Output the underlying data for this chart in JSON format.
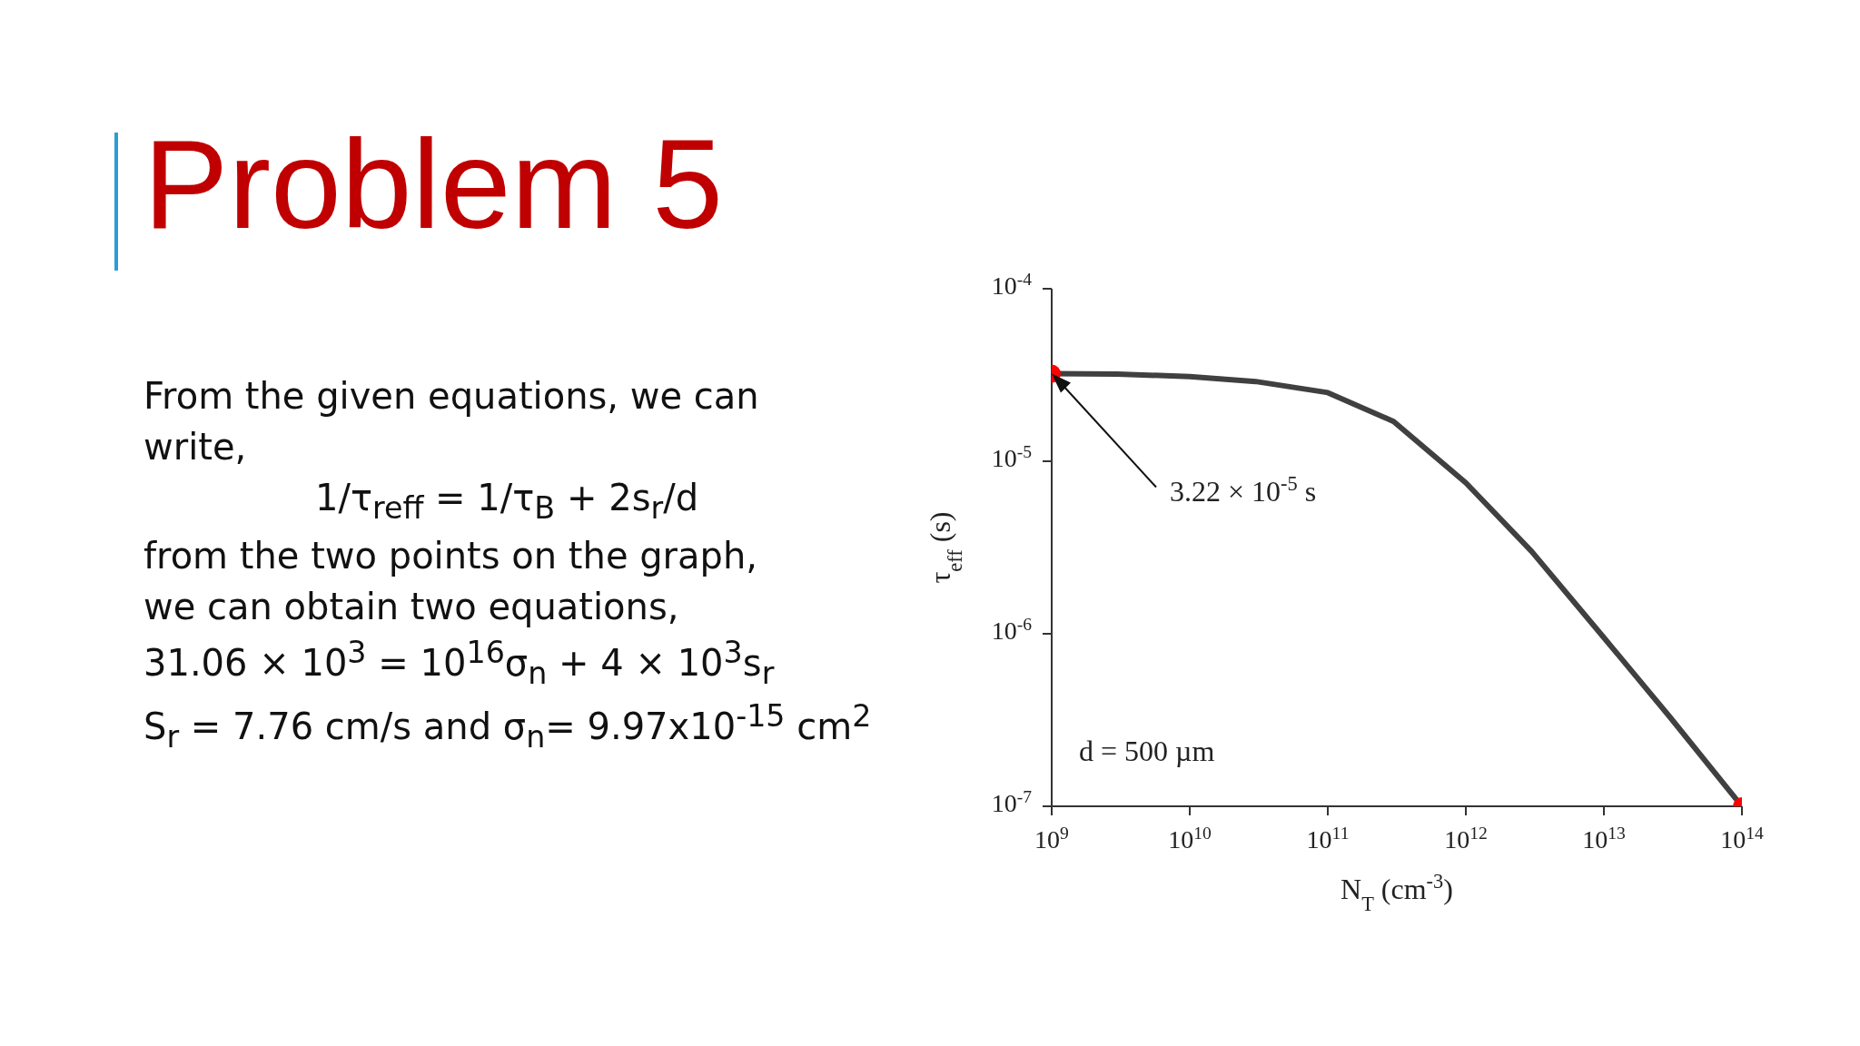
{
  "chart_data": {
    "type": "line",
    "title": "Problem 5",
    "xlabel": "N$_{T}$ (cm$^{-3}$)",
    "ylabel": "τ$_{eff}$ (s)",
    "log": "xy",
    "xlim": [
      1000000000.0,
      100000000000000.0
    ],
    "ylim": [
      1e-07,
      0.0001
    ],
    "xticks": [
      {
        "value": 1000000000.0,
        "label": "10$^{9}$"
      },
      {
        "value": 10000000000.0,
        "label": "10$^{10}$"
      },
      {
        "value": 100000000000.0,
        "label": "10$^{11}$"
      },
      {
        "value": 1000000000000.0,
        "label": "10$^{12}$"
      },
      {
        "value": 10000000000000.0,
        "label": "10$^{13}$"
      },
      {
        "value": 100000000000000.0,
        "label": "10$^{14}$"
      }
    ],
    "yticks": [
      {
        "value": 1e-07,
        "label": "10$^{-7}$"
      },
      {
        "value": 1e-06,
        "label": "10$^{-6}$"
      },
      {
        "value": 1e-05,
        "label": "10$^{-5}$"
      },
      {
        "value": 0.0001,
        "label": "10$^{-4}$"
      }
    ],
    "series": [
      {
        "type": "line",
        "color": "#404040",
        "x": [
          1000000000.0,
          3000000000.0,
          10000000000.0,
          30000000000.0,
          100000000000.0,
          300000000000.0,
          1000000000000.0,
          3000000000000.0,
          10000000000000.0,
          30000000000000.0,
          100000000000000.0
        ],
        "values": [
          3.22e-05,
          3.2e-05,
          3.1e-05,
          2.9e-05,
          2.5e-05,
          1.7e-05,
          7.5e-06,
          3e-06,
          9.5e-07,
          3.3e-07,
          1e-07
        ]
      },
      {
        "type": "scatter",
        "color": "#ff0000",
        "marker": "circle",
        "x": [
          1000000000.0,
          100000000000000.0
        ],
        "values": [
          3.22e-05,
          1e-07
        ]
      }
    ],
    "annotations": [
      {
        "text": "3.22 × 10$^{-5}$ s",
        "x": 1000000000.0,
        "y": 3.22e-05
      },
      "d = 500 µm",
      "From the given equations, we can write,",
      "1/τ$_{reff}$ = 1/τ$_{B}$ + 2s$_{r}$/d",
      "from the two points on the graph,",
      "we can obtain two equations,",
      "31.06 × 10$^{3}$ = 10$^{16}$σ$_{n}$ + 4 × 10$^{3}$s$_{r}$",
      "S$_{r}$ = 7.76 cm/s and σ$_{n}$= 9.97x10$^{-15}$ cm$^{2}$"
    ]
  }
}
